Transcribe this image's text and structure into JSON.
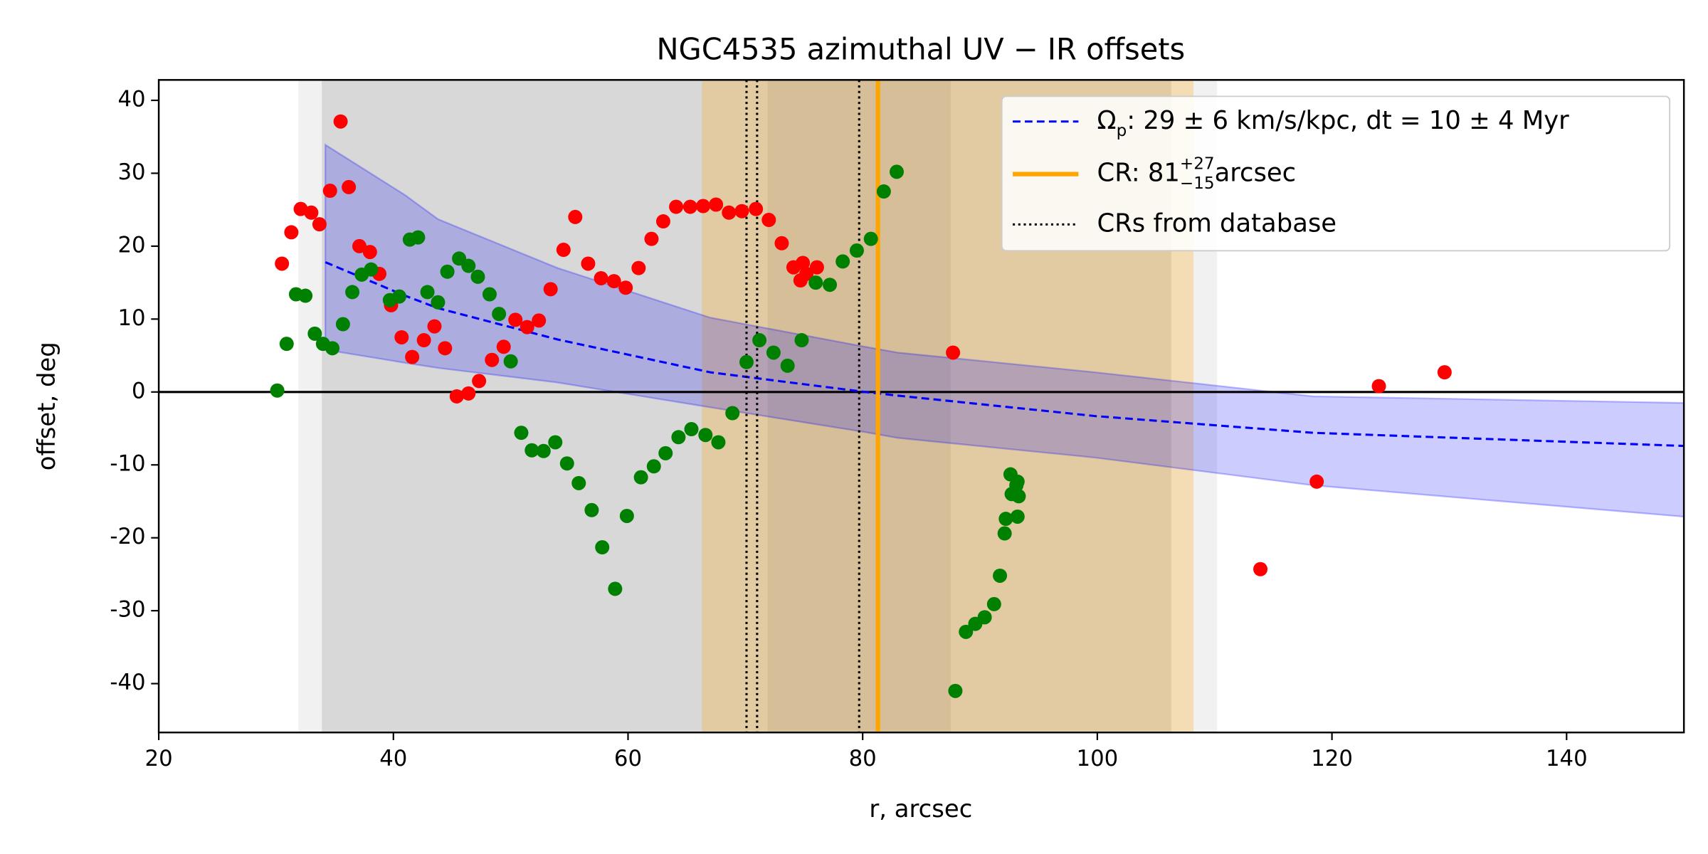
{
  "chart_data": {
    "type": "scatter",
    "title": "NGC4535 azimuthal UV − IR offsets",
    "xlabel": "r, arcsec",
    "ylabel": "offset, deg",
    "xlim": [
      20,
      150
    ],
    "ylim": [
      -46.7,
      42.8
    ],
    "xticks": [
      20,
      40,
      60,
      80,
      100,
      120,
      140
    ],
    "yticks": [
      -40,
      -30,
      -20,
      -10,
      0,
      10,
      20,
      30,
      40
    ],
    "hlines": [
      0
    ],
    "spans": [
      {
        "range": [
          31.9,
          110.2
        ],
        "color": "rgba(200,200,200,0.25)"
      },
      {
        "range": [
          33.9,
          106.3
        ],
        "color": "rgba(160,160,160,0.3)"
      },
      {
        "range": [
          66.3,
          108.2
        ],
        "color": "rgba(255,165,0,0.25)"
      },
      {
        "range": [
          71.9,
          87.5
        ],
        "color": "rgba(120,100,80,0.12)"
      }
    ],
    "model": {
      "name": [
        "Ω",
        "p",
        ": 29 ± 6 km/s/kpc, dt = 10 ± 4 Myr"
      ],
      "name_pos": [
        "normal",
        "sub",
        "normal"
      ],
      "color": "blue",
      "dashed": true,
      "band_color": "rgba(0,0,255,0.2)",
      "x": [
        34.2,
        41,
        43.8,
        54,
        67,
        80.2,
        83,
        99.8,
        118.4,
        150
      ],
      "values": [
        17.8,
        13.2,
        11.5,
        7.2,
        2.7,
        0,
        -0.5,
        -3.3,
        -5.6,
        -7.4
      ],
      "upper": [
        33.9,
        27,
        23.7,
        17,
        10.2,
        6.2,
        5.4,
        2.7,
        -0.6,
        -1.5
      ],
      "lower": [
        5.8,
        4,
        3.3,
        1.3,
        -2.1,
        -5.5,
        -6.3,
        -9.0,
        -12.8,
        -17.1
      ]
    },
    "cr": {
      "name": [
        "CR: 81",
        "+27",
        "−15",
        " arcsec"
      ],
      "name_pos": [
        "normal",
        "sup",
        "sub",
        "normal"
      ],
      "value": 81.3,
      "color": "orange"
    },
    "database_crs": {
      "name": "CRs from database",
      "values": [
        70.1,
        71.0,
        79.7
      ],
      "color": "black"
    },
    "series": [
      {
        "color": "red",
        "x": [
          30.5,
          31.3,
          32.1,
          33.0,
          33.7,
          34.6,
          35.5,
          36.2,
          37.1,
          38.0,
          38.8,
          39.8,
          40.7,
          41.6,
          42.6,
          43.5,
          44.4,
          45.4,
          46.4,
          47.3,
          48.4,
          49.4,
          50.4,
          51.4,
          52.4,
          53.4,
          54.5,
          55.5,
          56.6,
          57.7,
          58.8,
          59.8,
          60.9,
          62.0,
          63.0,
          64.1,
          65.3,
          66.4,
          67.5,
          68.6,
          69.7,
          70.9,
          72.0,
          73.1,
          74.1,
          74.7,
          74.9,
          75.2,
          76.1,
          87.7,
          113.9,
          118.7,
          124.0,
          129.6
        ],
        "values": [
          17.6,
          21.9,
          25.1,
          24.6,
          23.0,
          27.6,
          37.1,
          28.1,
          20.0,
          19.2,
          16.2,
          11.9,
          7.5,
          4.8,
          7.1,
          9.0,
          6.0,
          -0.6,
          -0.2,
          1.5,
          4.4,
          6.2,
          9.9,
          8.9,
          9.8,
          14.1,
          19.5,
          24.0,
          17.6,
          15.6,
          15.2,
          14.3,
          17.0,
          21.0,
          23.4,
          25.4,
          25.4,
          25.5,
          25.7,
          24.6,
          24.8,
          25.1,
          23.6,
          20.4,
          17.1,
          15.3,
          17.7,
          16.2,
          17.1,
          5.4,
          -24.3,
          -12.3,
          0.8,
          2.7
        ]
      },
      {
        "color": "green",
        "x": [
          30.1,
          30.9,
          31.7,
          32.5,
          33.3,
          34.0,
          34.8,
          35.7,
          36.5,
          37.3,
          38.1,
          39.7,
          40.5,
          41.4,
          42.1,
          42.9,
          43.8,
          44.6,
          45.6,
          46.4,
          47.2,
          48.2,
          49.0,
          50.0,
          50.9,
          51.8,
          52.8,
          53.8,
          54.8,
          55.8,
          56.9,
          57.8,
          58.9,
          59.9,
          61.1,
          62.2,
          63.2,
          64.3,
          65.4,
          66.6,
          67.7,
          68.9,
          70.1,
          71.2,
          72.4,
          73.6,
          74.8,
          76.0,
          77.2,
          78.3,
          79.5,
          80.7,
          81.8,
          82.9,
          87.9,
          88.8,
          89.6,
          90.4,
          91.2,
          91.7,
          92.1,
          92.2,
          92.6,
          92.7,
          93.1,
          93.2,
          93.2,
          93.3
        ],
        "values": [
          0.2,
          6.6,
          13.4,
          13.2,
          8.0,
          6.6,
          6.0,
          9.3,
          13.7,
          16.1,
          16.8,
          12.6,
          13.1,
          20.9,
          21.2,
          13.7,
          12.3,
          16.5,
          18.3,
          17.3,
          15.8,
          13.4,
          10.7,
          4.2,
          -5.6,
          -8.0,
          -8.1,
          -6.9,
          -9.8,
          -12.5,
          -16.2,
          -21.3,
          -27.0,
          -17.0,
          -11.7,
          -10.2,
          -8.4,
          -6.2,
          -5.1,
          -5.9,
          -6.9,
          -2.9,
          4.1,
          7.1,
          5.4,
          3.6,
          7.1,
          15.0,
          14.7,
          17.9,
          19.4,
          21.0,
          27.5,
          30.2,
          -41.0,
          -32.9,
          -31.8,
          -30.9,
          -29.1,
          -25.2,
          -19.4,
          -17.4,
          -11.3,
          -14.0,
          -12.8,
          -12.3,
          -17.1,
          -14.3
        ]
      }
    ]
  }
}
